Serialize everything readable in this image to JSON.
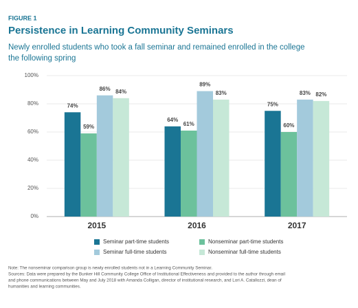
{
  "chart_data": {
    "type": "bar",
    "figure_label": "FIGURE 1",
    "title": "Persistence in Learning Community Seminars",
    "subtitle": [
      "Newly enrolled students who took a fall seminar and remained enrolled in the college",
      "the following spring"
    ],
    "categories": [
      "2015",
      "2016",
      "2017"
    ],
    "series": [
      {
        "name": "Seminar part-time students",
        "color": "#1a7594",
        "values": [
          74,
          64,
          75
        ],
        "value_labels": [
          "74%",
          "64%",
          "75%"
        ]
      },
      {
        "name": "Nonseminar part-time students",
        "color": "#6cc19c",
        "values": [
          59,
          61,
          60
        ],
        "value_labels": [
          "59%",
          "61%",
          "60%"
        ]
      },
      {
        "name": "Seminar full-time students",
        "color": "#a3cadc",
        "values": [
          86,
          89,
          83
        ],
        "value_labels": [
          "86%",
          "89%",
          "83%"
        ]
      },
      {
        "name": "Nonseminar full-time students",
        "color": "#c6e8d7",
        "values": [
          84,
          83,
          82
        ],
        "value_labels": [
          "84%",
          "83%",
          "82%"
        ]
      }
    ],
    "ylim": [
      0,
      100
    ],
    "yticks": [
      {
        "value": 0,
        "label": "0%"
      },
      {
        "value": 20,
        "label": "20%"
      },
      {
        "value": 40,
        "label": "40%"
      },
      {
        "value": 60,
        "label": "60%"
      },
      {
        "value": 80,
        "label": "80%"
      },
      {
        "value": 100,
        "label": "100%"
      }
    ],
    "grid": true,
    "legend_position": "bottom",
    "notes": [
      "Note: The nonseminar comparison group is newly enrolled students not in a Learning Community Seminar.",
      "Sources: Data were prepared by the Bunker Hill Community College Office of Institutional Effectiveness and provided to the author through email",
      "and phone communications between May and July 2018 with Amanda Colligan, director of institutional research, and Lori A. Catallozzi, dean of",
      "humanities and learning communities."
    ]
  }
}
